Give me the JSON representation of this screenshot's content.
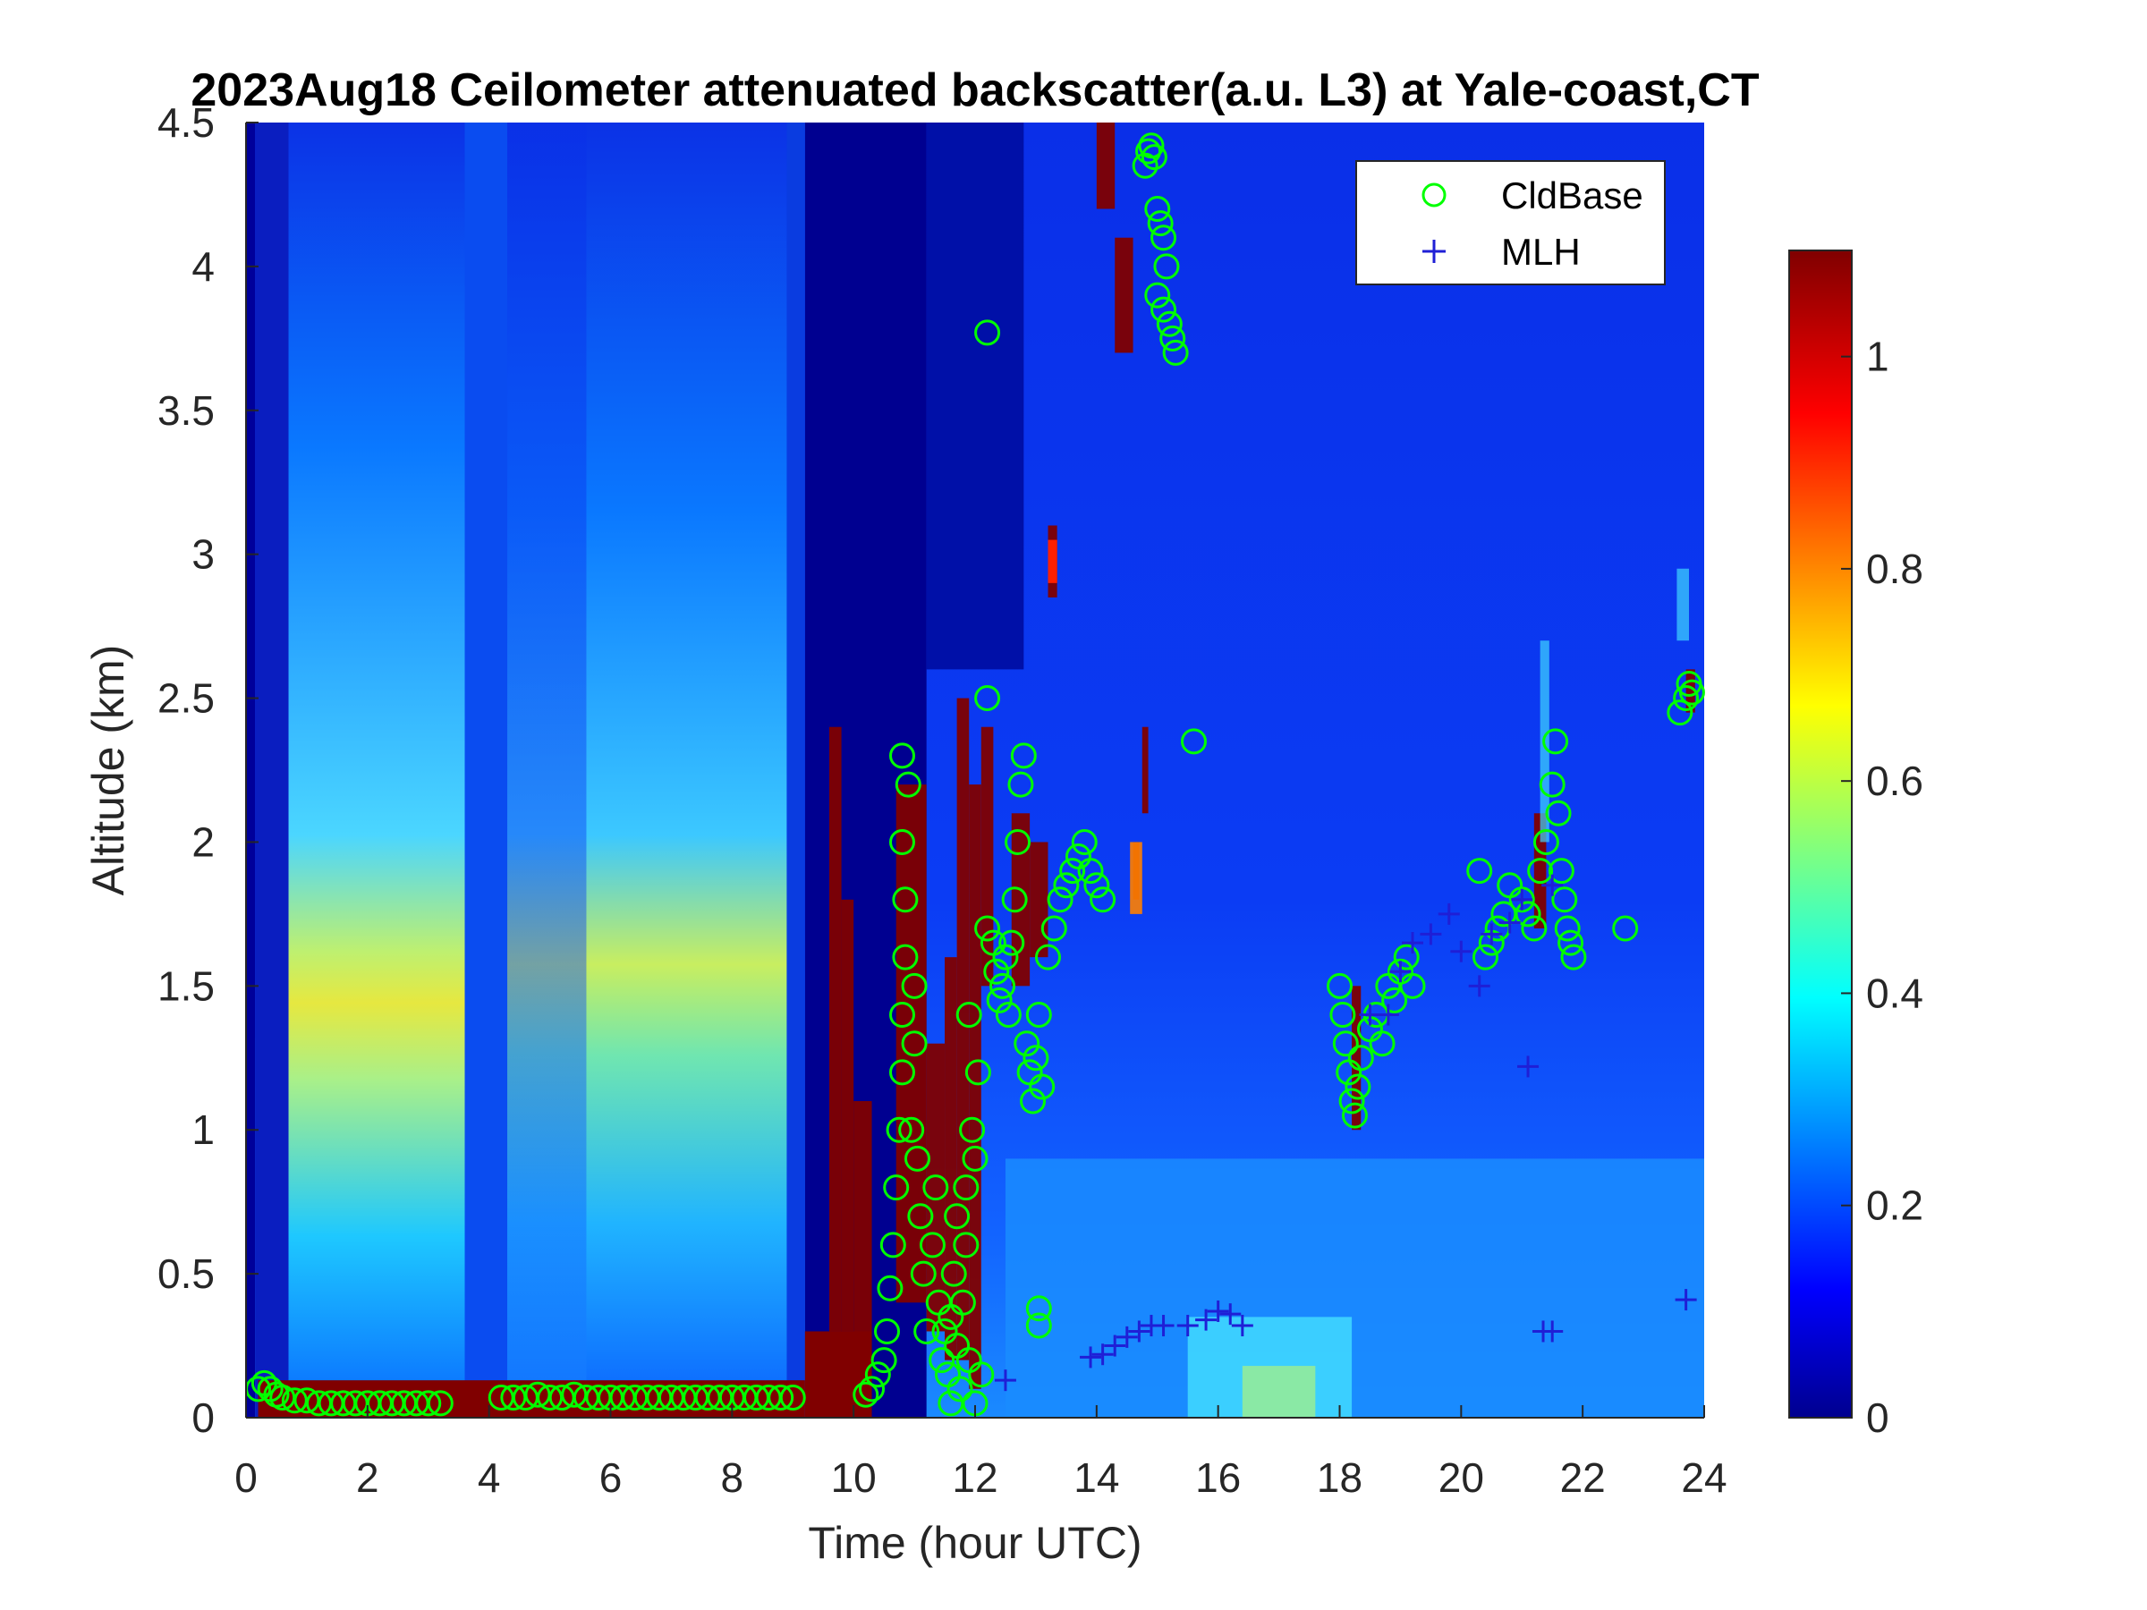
{
  "chart_data": {
    "type": "heatmap",
    "title": "2023Aug18 Ceilometer attenuated backscatter(a.u. L3) at Yale-coast,CT",
    "xlabel": "Time (hour UTC)",
    "ylabel": "Altitude (km)",
    "xlim": [
      0,
      24
    ],
    "ylim": [
      0,
      4.5
    ],
    "xticks": [
      0,
      2,
      4,
      6,
      8,
      10,
      12,
      14,
      16,
      18,
      20,
      22,
      24
    ],
    "yticks": [
      0,
      0.5,
      1,
      1.5,
      2,
      2.5,
      3,
      3.5,
      4,
      4.5
    ],
    "grid": false,
    "legend_position": "top-right",
    "colormap": "jet",
    "colorbar": {
      "clim": [
        0,
        1.1
      ],
      "ticks": [
        0,
        0.2,
        0.4,
        0.6,
        0.8,
        1
      ]
    },
    "series": [
      {
        "name": "CldBase",
        "marker": "circle",
        "color": "#00ff00",
        "points": [
          [
            0.2,
            0.1
          ],
          [
            0.3,
            0.12
          ],
          [
            0.4,
            0.1
          ],
          [
            0.5,
            0.08
          ],
          [
            0.6,
            0.07
          ],
          [
            0.8,
            0.06
          ],
          [
            1.0,
            0.06
          ],
          [
            1.2,
            0.05
          ],
          [
            1.4,
            0.05
          ],
          [
            1.6,
            0.05
          ],
          [
            1.8,
            0.05
          ],
          [
            2.0,
            0.05
          ],
          [
            2.2,
            0.05
          ],
          [
            2.4,
            0.05
          ],
          [
            2.6,
            0.05
          ],
          [
            2.8,
            0.05
          ],
          [
            3.0,
            0.05
          ],
          [
            3.2,
            0.05
          ],
          [
            4.2,
            0.07
          ],
          [
            4.4,
            0.07
          ],
          [
            4.6,
            0.07
          ],
          [
            4.8,
            0.08
          ],
          [
            5.0,
            0.07
          ],
          [
            5.2,
            0.07
          ],
          [
            5.4,
            0.08
          ],
          [
            5.6,
            0.07
          ],
          [
            5.8,
            0.07
          ],
          [
            6.0,
            0.07
          ],
          [
            6.2,
            0.07
          ],
          [
            6.4,
            0.07
          ],
          [
            6.6,
            0.07
          ],
          [
            6.8,
            0.07
          ],
          [
            7.0,
            0.07
          ],
          [
            7.2,
            0.07
          ],
          [
            7.4,
            0.07
          ],
          [
            7.6,
            0.07
          ],
          [
            7.8,
            0.07
          ],
          [
            8.0,
            0.07
          ],
          [
            8.2,
            0.07
          ],
          [
            8.4,
            0.07
          ],
          [
            8.6,
            0.07
          ],
          [
            8.8,
            0.07
          ],
          [
            9.0,
            0.07
          ],
          [
            10.2,
            0.08
          ],
          [
            10.3,
            0.1
          ],
          [
            10.4,
            0.15
          ],
          [
            10.5,
            0.2
          ],
          [
            10.55,
            0.3
          ],
          [
            10.6,
            0.45
          ],
          [
            10.65,
            0.6
          ],
          [
            10.7,
            0.8
          ],
          [
            10.75,
            1.0
          ],
          [
            10.8,
            1.2
          ],
          [
            10.8,
            1.4
          ],
          [
            10.85,
            1.6
          ],
          [
            10.85,
            1.8
          ],
          [
            10.8,
            2.0
          ],
          [
            10.9,
            2.2
          ],
          [
            10.8,
            2.3
          ],
          [
            10.95,
            1.0
          ],
          [
            11.0,
            1.3
          ],
          [
            11.0,
            1.5
          ],
          [
            11.05,
            0.9
          ],
          [
            11.1,
            0.7
          ],
          [
            11.15,
            0.5
          ],
          [
            11.2,
            0.3
          ],
          [
            11.3,
            0.6
          ],
          [
            11.35,
            0.8
          ],
          [
            11.4,
            0.4
          ],
          [
            11.45,
            0.2
          ],
          [
            11.5,
            0.3
          ],
          [
            11.55,
            0.15
          ],
          [
            11.6,
            0.35
          ],
          [
            11.65,
            0.5
          ],
          [
            11.7,
            0.25
          ],
          [
            11.75,
            0.1
          ],
          [
            11.8,
            0.4
          ],
          [
            11.85,
            0.6
          ],
          [
            11.9,
            0.2
          ],
          [
            11.95,
            1.0
          ],
          [
            11.9,
            1.4
          ],
          [
            12.0,
            0.9
          ],
          [
            12.05,
            1.2
          ],
          [
            12.0,
            0.05
          ],
          [
            12.1,
            0.15
          ],
          [
            12.2,
            2.5
          ],
          [
            11.85,
            0.8
          ],
          [
            11.7,
            0.7
          ],
          [
            11.6,
            0.05
          ],
          [
            12.2,
            1.7
          ],
          [
            12.3,
            1.65
          ],
          [
            12.35,
            1.55
          ],
          [
            12.4,
            1.45
          ],
          [
            12.45,
            1.5
          ],
          [
            12.5,
            1.6
          ],
          [
            12.55,
            1.4
          ],
          [
            12.6,
            1.65
          ],
          [
            12.65,
            1.8
          ],
          [
            12.7,
            2.0
          ],
          [
            12.75,
            2.2
          ],
          [
            12.8,
            2.3
          ],
          [
            12.85,
            1.3
          ],
          [
            12.9,
            1.2
          ],
          [
            12.95,
            1.1
          ],
          [
            13.0,
            1.25
          ],
          [
            13.05,
            1.4
          ],
          [
            13.1,
            1.15
          ],
          [
            13.2,
            1.6
          ],
          [
            13.3,
            1.7
          ],
          [
            13.4,
            1.8
          ],
          [
            13.5,
            1.85
          ],
          [
            13.6,
            1.9
          ],
          [
            13.7,
            1.95
          ],
          [
            13.8,
            2.0
          ],
          [
            13.9,
            1.9
          ],
          [
            14.0,
            1.85
          ],
          [
            14.1,
            1.8
          ],
          [
            13.05,
            0.38
          ],
          [
            13.05,
            0.32
          ],
          [
            12.2,
            3.77
          ],
          [
            14.8,
            4.35
          ],
          [
            14.85,
            4.4
          ],
          [
            14.9,
            4.42
          ],
          [
            14.95,
            4.38
          ],
          [
            15.0,
            4.2
          ],
          [
            15.05,
            4.15
          ],
          [
            15.1,
            4.1
          ],
          [
            15.15,
            4.0
          ],
          [
            15.0,
            3.9
          ],
          [
            15.1,
            3.85
          ],
          [
            15.2,
            3.8
          ],
          [
            15.25,
            3.75
          ],
          [
            15.3,
            3.7
          ],
          [
            15.6,
            2.35
          ],
          [
            18.0,
            1.5
          ],
          [
            18.05,
            1.4
          ],
          [
            18.1,
            1.3
          ],
          [
            18.15,
            1.2
          ],
          [
            18.2,
            1.1
          ],
          [
            18.25,
            1.05
          ],
          [
            18.3,
            1.15
          ],
          [
            18.35,
            1.25
          ],
          [
            18.5,
            1.35
          ],
          [
            18.6,
            1.4
          ],
          [
            18.7,
            1.3
          ],
          [
            18.8,
            1.5
          ],
          [
            18.9,
            1.45
          ],
          [
            19.0,
            1.55
          ],
          [
            19.1,
            1.6
          ],
          [
            19.2,
            1.5
          ],
          [
            20.3,
            1.9
          ],
          [
            20.4,
            1.6
          ],
          [
            20.5,
            1.65
          ],
          [
            20.6,
            1.7
          ],
          [
            20.7,
            1.75
          ],
          [
            20.8,
            1.85
          ],
          [
            21.0,
            1.8
          ],
          [
            21.1,
            1.75
          ],
          [
            21.2,
            1.7
          ],
          [
            21.3,
            1.9
          ],
          [
            21.4,
            2.0
          ],
          [
            21.5,
            2.2
          ],
          [
            21.55,
            2.35
          ],
          [
            21.6,
            2.1
          ],
          [
            21.65,
            1.9
          ],
          [
            21.7,
            1.8
          ],
          [
            21.75,
            1.7
          ],
          [
            21.8,
            1.65
          ],
          [
            21.85,
            1.6
          ],
          [
            22.7,
            1.7
          ],
          [
            23.6,
            2.45
          ],
          [
            23.7,
            2.5
          ],
          [
            23.75,
            2.55
          ],
          [
            23.8,
            2.52
          ]
        ]
      },
      {
        "name": "MLH",
        "marker": "plus",
        "color": "#1f1fd6",
        "points": [
          [
            12.5,
            0.13
          ],
          [
            13.9,
            0.21
          ],
          [
            14.1,
            0.22
          ],
          [
            14.3,
            0.25
          ],
          [
            14.5,
            0.28
          ],
          [
            14.7,
            0.3
          ],
          [
            14.9,
            0.32
          ],
          [
            15.1,
            0.32
          ],
          [
            15.5,
            0.32
          ],
          [
            15.8,
            0.34
          ],
          [
            16.0,
            0.37
          ],
          [
            16.2,
            0.36
          ],
          [
            16.4,
            0.32
          ],
          [
            18.5,
            1.4
          ],
          [
            18.8,
            1.4
          ],
          [
            19.0,
            1.55
          ],
          [
            19.2,
            1.65
          ],
          [
            19.5,
            1.68
          ],
          [
            19.8,
            1.75
          ],
          [
            20.0,
            1.62
          ],
          [
            20.3,
            1.5
          ],
          [
            20.5,
            1.68
          ],
          [
            20.8,
            1.72
          ],
          [
            21.0,
            1.8
          ],
          [
            21.1,
            1.22
          ],
          [
            21.5,
            1.85
          ],
          [
            21.35,
            0.3
          ],
          [
            21.5,
            0.3
          ],
          [
            23.7,
            0.41
          ]
        ]
      }
    ]
  }
}
